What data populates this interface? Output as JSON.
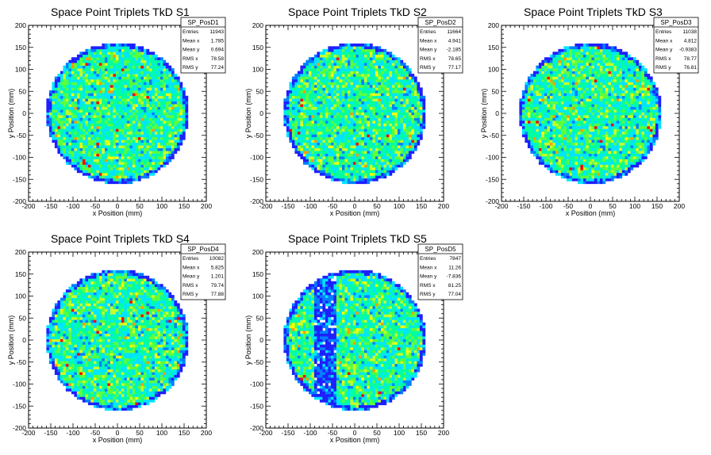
{
  "chart_data": [
    {
      "type": "heatmap",
      "title": "Space Point Triplets TkD S1",
      "xlabel": "x Position (mm)",
      "ylabel": "y Position (mm)",
      "xlim": [
        -200,
        200
      ],
      "ylim": [
        -200,
        200
      ],
      "xticks": [
        -200,
        -150,
        -100,
        -50,
        0,
        50,
        100,
        150,
        200
      ],
      "yticks": [
        -200,
        -150,
        -100,
        -50,
        0,
        50,
        100,
        150,
        200
      ],
      "stats": {
        "name": "SP_PosD1",
        "rows": [
          {
            "label": "Entries",
            "value": "11943"
          },
          {
            "label": "Mean x",
            "value": "1.785"
          },
          {
            "label": "Mean y",
            "value": "0.694"
          },
          {
            "label": "RMS x",
            "value": "78.58"
          },
          {
            "label": "RMS y",
            "value": "77.24"
          }
        ]
      },
      "radius_mm": 160,
      "colors": [
        "#1f1fff",
        "#0080ff",
        "#00e5ff",
        "#00ffa0",
        "#5cff3c",
        "#c8ff28",
        "#ffff00",
        "#ff9c00",
        "#ff0000"
      ]
    },
    {
      "type": "heatmap",
      "title": "Space Point Triplets TkD S2",
      "xlabel": "x Position (mm)",
      "ylabel": "y Position (mm)",
      "xlim": [
        -200,
        200
      ],
      "ylim": [
        -200,
        200
      ],
      "xticks": [
        -200,
        -150,
        -100,
        -50,
        0,
        50,
        100,
        150,
        200
      ],
      "yticks": [
        -200,
        -150,
        -100,
        -50,
        0,
        50,
        100,
        150,
        200
      ],
      "stats": {
        "name": "SP_PosD2",
        "rows": [
          {
            "label": "Entries",
            "value": "11664"
          },
          {
            "label": "Mean x",
            "value": "4.941"
          },
          {
            "label": "Mean y",
            "value": "-2.185"
          },
          {
            "label": "RMS x",
            "value": "78.65"
          },
          {
            "label": "RMS y",
            "value": "77.17"
          }
        ]
      },
      "radius_mm": 160,
      "colors": [
        "#1f1fff",
        "#0080ff",
        "#00e5ff",
        "#00ffa0",
        "#5cff3c",
        "#c8ff28",
        "#ffff00",
        "#ff9c00",
        "#ff0000"
      ]
    },
    {
      "type": "heatmap",
      "title": "Space Point Triplets TkD S3",
      "xlabel": "x Position (mm)",
      "ylabel": "y Position (mm)",
      "xlim": [
        -200,
        200
      ],
      "ylim": [
        -200,
        200
      ],
      "xticks": [
        -200,
        -150,
        -100,
        -50,
        0,
        50,
        100,
        150,
        200
      ],
      "yticks": [
        -200,
        -150,
        -100,
        -50,
        0,
        50,
        100,
        150,
        200
      ],
      "stats": {
        "name": "SP_PosD3",
        "rows": [
          {
            "label": "Entries",
            "value": "11038"
          },
          {
            "label": "Mean x",
            "value": "4.812"
          },
          {
            "label": "Mean y",
            "value": "-0.9383"
          },
          {
            "label": "RMS x",
            "value": "78.77"
          },
          {
            "label": "RMS y",
            "value": "76.81"
          }
        ]
      },
      "radius_mm": 160,
      "colors": [
        "#1f1fff",
        "#0080ff",
        "#00e5ff",
        "#00ffa0",
        "#5cff3c",
        "#c8ff28",
        "#ffff00",
        "#ff9c00",
        "#ff0000"
      ]
    },
    {
      "type": "heatmap",
      "title": "Space Point Triplets TkD S4",
      "xlabel": "x Position (mm)",
      "ylabel": "y Position (mm)",
      "xlim": [
        -200,
        200
      ],
      "ylim": [
        -200,
        200
      ],
      "xticks": [
        -200,
        -150,
        -100,
        -50,
        0,
        50,
        100,
        150,
        200
      ],
      "yticks": [
        -200,
        -150,
        -100,
        -50,
        0,
        50,
        100,
        150,
        200
      ],
      "stats": {
        "name": "SP_PosD4",
        "rows": [
          {
            "label": "Entries",
            "value": "10082"
          },
          {
            "label": "Mean x",
            "value": "5.825"
          },
          {
            "label": "Mean y",
            "value": "1.201"
          },
          {
            "label": "RMS x",
            "value": "79.74"
          },
          {
            "label": "RMS y",
            "value": "77.88"
          }
        ]
      },
      "radius_mm": 160,
      "colors": [
        "#1f1fff",
        "#0080ff",
        "#00e5ff",
        "#00ffa0",
        "#5cff3c",
        "#c8ff28",
        "#ffff00",
        "#ff9c00",
        "#ff0000"
      ]
    },
    {
      "type": "heatmap",
      "title": "Space Point Triplets TkD S5",
      "xlabel": "x Position (mm)",
      "ylabel": "y Position (mm)",
      "xlim": [
        -200,
        200
      ],
      "ylim": [
        -200,
        200
      ],
      "xticks": [
        -200,
        -150,
        -100,
        -50,
        0,
        50,
        100,
        150,
        200
      ],
      "yticks": [
        -200,
        -150,
        -100,
        -50,
        0,
        50,
        100,
        150,
        200
      ],
      "stats": {
        "name": "SP_PosD5",
        "rows": [
          {
            "label": "Entries",
            "value": "7847"
          },
          {
            "label": "Mean x",
            "value": "11.26"
          },
          {
            "label": "Mean y",
            "value": "-7.836"
          },
          {
            "label": "RMS x",
            "value": "81.25"
          },
          {
            "label": "RMS y",
            "value": "77.04"
          }
        ]
      },
      "radius_mm": 160,
      "low_efficiency_band_x_mm": [
        -90,
        -40
      ],
      "colors": [
        "#1f1fff",
        "#0080ff",
        "#00e5ff",
        "#00ffa0",
        "#5cff3c",
        "#c8ff28",
        "#ffff00",
        "#ff9c00",
        "#ff0000"
      ]
    }
  ]
}
